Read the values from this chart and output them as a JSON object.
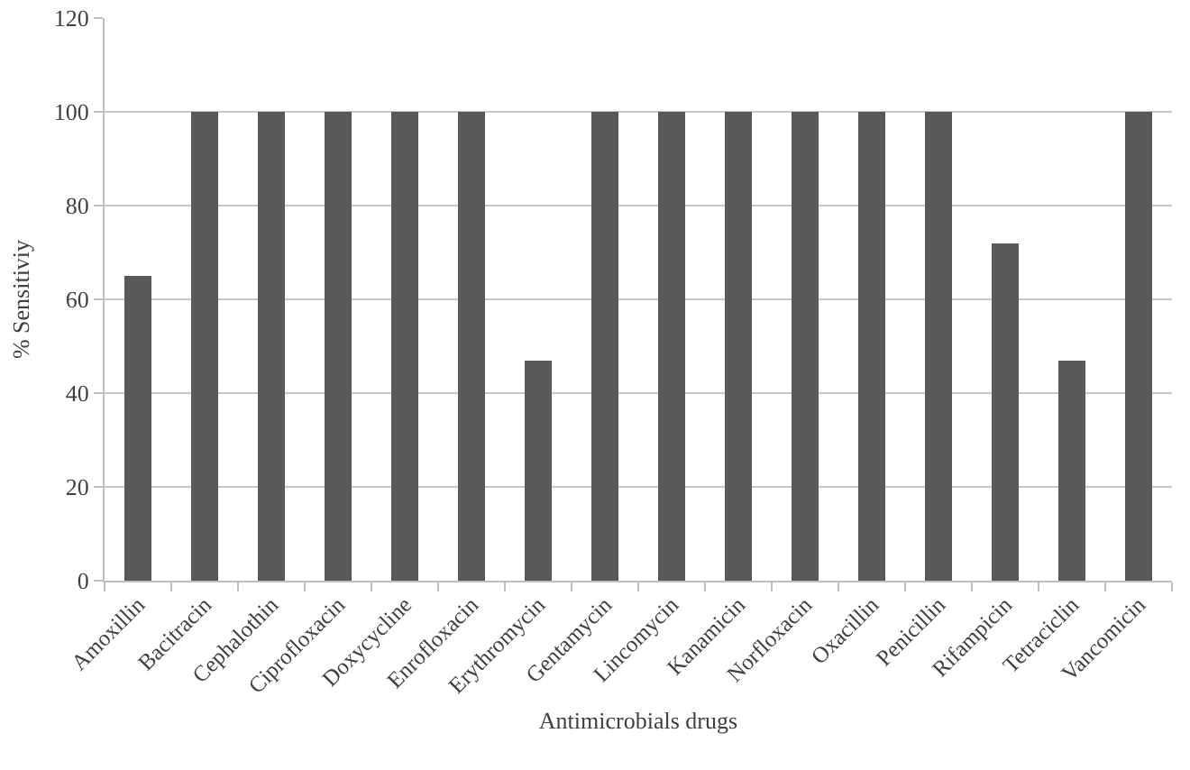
{
  "chart_data": {
    "type": "bar",
    "xlabel": "Antimicrobials drugs",
    "ylabel": "% Sensitiviy",
    "categories": [
      "Amoxillin",
      "Bacitracin",
      "Cephalothin",
      "Ciprofloxacin",
      "Doxycycline",
      "Enrofloxacin",
      "Erythromycin",
      "Gentamycin",
      "Lincomycin",
      "Kanamicin",
      "Norfloxacin",
      "Oxacillin",
      "Penicillin",
      "Rifampicin",
      "Tetraciclin",
      "Vancomicin"
    ],
    "values": [
      65,
      100,
      100,
      100,
      100,
      100,
      47,
      100,
      100,
      100,
      100,
      100,
      100,
      72,
      47,
      100
    ],
    "color": "#595959",
    "ylim": [
      0,
      120
    ],
    "yticks": [
      0,
      20,
      40,
      60,
      80,
      100,
      120
    ],
    "grid": "y"
  }
}
